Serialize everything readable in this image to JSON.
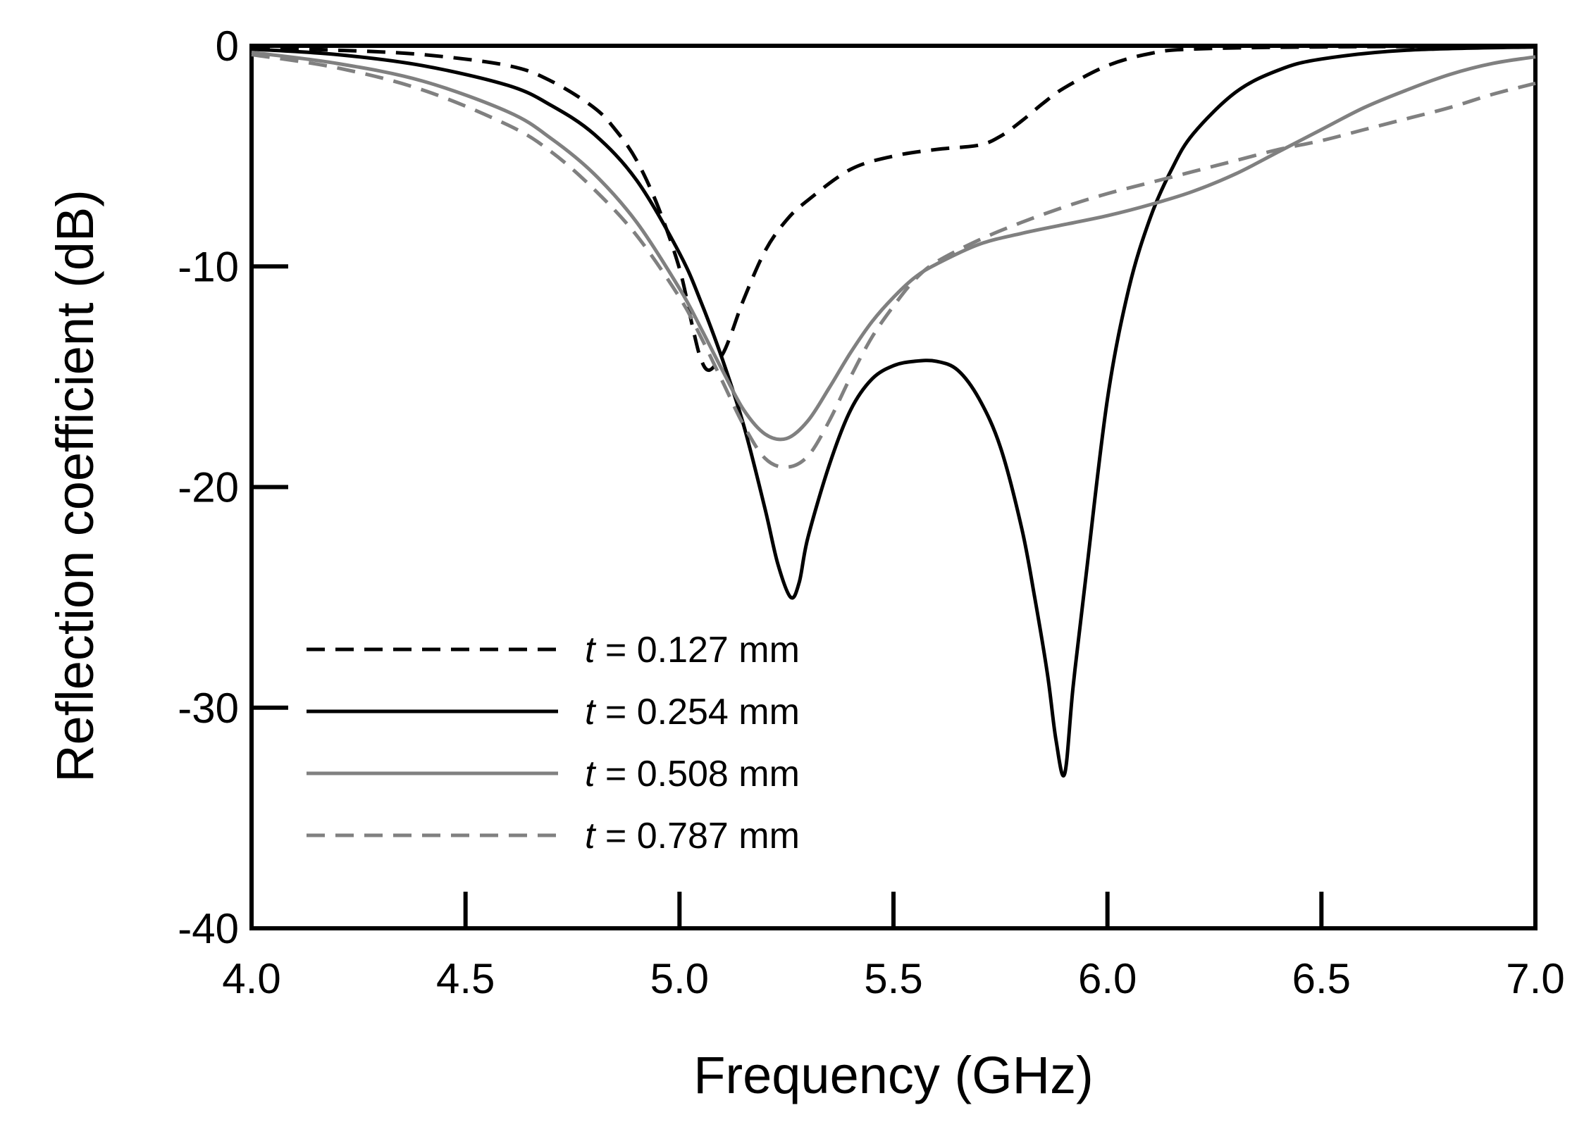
{
  "chart_data": {
    "type": "line",
    "title": "",
    "xlabel": "Frequency (GHz)",
    "ylabel": "Reflection coefficient (dB)",
    "xlim": [
      4.0,
      7.0
    ],
    "ylim": [
      -40,
      0
    ],
    "xticks": [
      4.0,
      4.5,
      5.0,
      5.5,
      6.0,
      6.5,
      7.0
    ],
    "xtick_labels": [
      "4.0",
      "4.5",
      "5.0",
      "5.5",
      "6.0",
      "6.5",
      "7.0"
    ],
    "yticks": [
      0,
      -10,
      -20,
      -30,
      -40
    ],
    "ytick_labels": [
      "0",
      "-10",
      "-20",
      "-30",
      "-40"
    ],
    "grid": false,
    "legend_position": "bottom-left",
    "series": [
      {
        "name": "t = 0.127 mm",
        "legend_var": "t",
        "legend_rest": " = 0.127 mm",
        "color": "#000000",
        "dash": "dashed",
        "x": [
          4.0,
          4.2,
          4.4,
          4.6,
          4.7,
          4.8,
          4.85,
          4.9,
          4.95,
          5.0,
          5.03,
          5.05,
          5.07,
          5.1,
          5.12,
          5.15,
          5.2,
          5.25,
          5.3,
          5.4,
          5.5,
          5.6,
          5.7,
          5.75,
          5.8,
          5.85,
          5.9,
          6.0,
          6.1,
          6.2,
          6.5,
          7.0
        ],
        "y": [
          -0.1,
          -0.2,
          -0.4,
          -0.9,
          -1.6,
          -2.8,
          -3.8,
          -5.2,
          -7.3,
          -10.1,
          -12.7,
          -14.2,
          -14.7,
          -14.0,
          -13.1,
          -11.5,
          -9.3,
          -7.9,
          -7.0,
          -5.6,
          -5.0,
          -4.7,
          -4.5,
          -4.1,
          -3.4,
          -2.6,
          -1.9,
          -0.9,
          -0.35,
          -0.15,
          -0.05,
          -0.02
        ]
      },
      {
        "name": "t = 0.254 mm",
        "legend_var": "t",
        "legend_rest": " = 0.254 mm",
        "color": "#000000",
        "dash": "solid",
        "x": [
          4.0,
          4.2,
          4.4,
          4.6,
          4.7,
          4.8,
          4.9,
          5.0,
          5.05,
          5.1,
          5.15,
          5.2,
          5.23,
          5.26,
          5.28,
          5.3,
          5.35,
          5.4,
          5.45,
          5.5,
          5.55,
          5.6,
          5.65,
          5.7,
          5.75,
          5.8,
          5.83,
          5.86,
          5.88,
          5.9,
          5.92,
          5.95,
          6.0,
          6.05,
          6.1,
          6.15,
          6.2,
          6.3,
          6.4,
          6.5,
          6.7,
          7.0
        ],
        "y": [
          -0.15,
          -0.4,
          -0.9,
          -1.8,
          -2.7,
          -4.0,
          -6.1,
          -9.4,
          -11.6,
          -14.2,
          -17.2,
          -21.0,
          -23.5,
          -25.0,
          -24.3,
          -22.3,
          -19.0,
          -16.5,
          -15.1,
          -14.5,
          -14.3,
          -14.3,
          -14.7,
          -16.0,
          -18.2,
          -21.9,
          -25.0,
          -28.5,
          -31.5,
          -33.0,
          -29.0,
          -24.0,
          -16.0,
          -11.0,
          -7.8,
          -5.6,
          -4.0,
          -2.1,
          -1.1,
          -0.6,
          -0.2,
          -0.05
        ]
      },
      {
        "name": "t = 0.508 mm",
        "legend_var": "t",
        "legend_rest": " = 0.508 mm",
        "color": "#808080",
        "dash": "solid",
        "x": [
          4.0,
          4.2,
          4.4,
          4.6,
          4.7,
          4.8,
          4.9,
          5.0,
          5.05,
          5.1,
          5.15,
          5.2,
          5.25,
          5.3,
          5.35,
          5.4,
          5.45,
          5.5,
          5.55,
          5.6,
          5.7,
          5.8,
          5.9,
          6.0,
          6.1,
          6.2,
          6.3,
          6.4,
          6.5,
          6.6,
          6.7,
          6.8,
          6.9,
          7.0
        ],
        "y": [
          -0.3,
          -0.8,
          -1.6,
          -3.0,
          -4.2,
          -5.8,
          -8.0,
          -11.0,
          -12.8,
          -14.7,
          -16.5,
          -17.6,
          -17.8,
          -17.0,
          -15.5,
          -13.9,
          -12.5,
          -11.4,
          -10.5,
          -9.9,
          -9.0,
          -8.5,
          -8.1,
          -7.7,
          -7.2,
          -6.6,
          -5.8,
          -4.8,
          -3.8,
          -2.8,
          -2.0,
          -1.3,
          -0.8,
          -0.5
        ]
      },
      {
        "name": "t = 0.787 mm",
        "legend_var": "t",
        "legend_rest": " = 0.787 mm",
        "color": "#808080",
        "dash": "dashed",
        "x": [
          4.0,
          4.2,
          4.4,
          4.6,
          4.7,
          4.8,
          4.9,
          5.0,
          5.05,
          5.1,
          5.15,
          5.2,
          5.25,
          5.3,
          5.35,
          5.4,
          5.45,
          5.5,
          5.55,
          5.6,
          5.7,
          5.8,
          5.9,
          6.0,
          6.1,
          6.2,
          6.3,
          6.4,
          6.5,
          6.6,
          6.7,
          6.8,
          6.9,
          7.0
        ],
        "y": [
          -0.4,
          -1.0,
          -2.0,
          -3.6,
          -4.8,
          -6.5,
          -8.6,
          -11.4,
          -13.2,
          -15.2,
          -17.2,
          -18.7,
          -19.1,
          -18.6,
          -17.0,
          -15.0,
          -13.2,
          -11.8,
          -10.6,
          -9.8,
          -8.8,
          -8.0,
          -7.3,
          -6.7,
          -6.2,
          -5.7,
          -5.2,
          -4.7,
          -4.3,
          -3.8,
          -3.3,
          -2.8,
          -2.2,
          -1.7
        ]
      }
    ]
  }
}
